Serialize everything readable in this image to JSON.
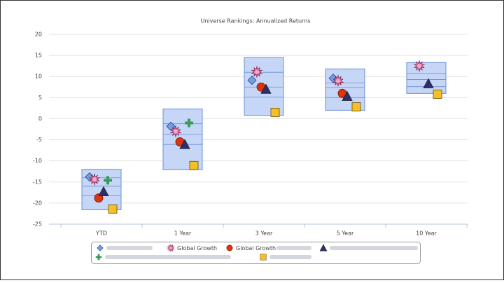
{
  "chart_data": {
    "type": "ranking",
    "title": "Universe Rankings: Annualized Returns",
    "categories": [
      "YTD",
      "1 Year",
      "3 Year",
      "5 Year",
      "10 Year"
    ],
    "boxes": [
      [
        -12.0,
        -14.0,
        -16.0,
        -18.3,
        -21.6
      ],
      [
        2.3,
        -1.2,
        -3.7,
        -6.1,
        -12.1
      ],
      [
        14.5,
        11.0,
        7.5,
        5.1,
        0.8
      ],
      [
        11.8,
        8.5,
        7.4,
        5.0,
        2.0
      ],
      [
        13.3,
        10.8,
        9.3,
        7.6,
        6.0
      ]
    ],
    "box_color": "#c6d6f7",
    "box_stroke": "#6b8fd6",
    "series": [
      {
        "name": null,
        "marker": "diamond",
        "color": "#6f9fe6",
        "values": [
          -13.8,
          -1.8,
          9.1,
          9.6,
          null
        ]
      },
      {
        "name": "Global Growth",
        "marker": "star",
        "color": "#f3a7c9",
        "values": [
          -14.4,
          -3.0,
          11.1,
          9.0,
          12.5
        ]
      },
      {
        "name": "Global Growth",
        "marker": "circle",
        "color": "#e0330c",
        "values": [
          -18.8,
          -5.5,
          7.5,
          6.0,
          null
        ]
      },
      {
        "name": null,
        "marker": "triangle",
        "color": "#2b2f70",
        "values": [
          -17.3,
          -6.1,
          7.0,
          5.3,
          8.3
        ]
      },
      {
        "name": null,
        "marker": "plus",
        "color": "#3a9a5a",
        "values": [
          -14.6,
          -1.0,
          null,
          null,
          null
        ]
      },
      {
        "name": null,
        "marker": "square",
        "color": "#f5c026",
        "values": [
          -21.4,
          -11.1,
          1.5,
          2.8,
          5.8
        ]
      }
    ],
    "ylim": [
      -25,
      20
    ],
    "yticks": [
      -25,
      -20,
      -15,
      -10,
      -5,
      0,
      5,
      10,
      15,
      20
    ],
    "grid": true
  }
}
